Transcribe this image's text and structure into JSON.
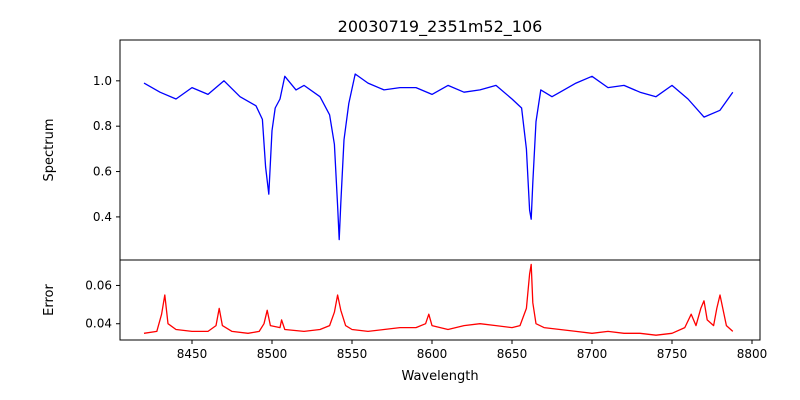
{
  "chart_data": [
    {
      "type": "line",
      "title": "20030719_2351m52_106",
      "xlabel": "",
      "ylabel": "Spectrum",
      "xlim": [
        8405,
        8805
      ],
      "ylim": [
        0.21,
        1.18
      ],
      "xticks": [],
      "yticks": [
        0.4,
        0.6,
        0.8,
        1.0
      ],
      "ytick_labels": [
        "0.4",
        "0.6",
        "0.8",
        "1.0"
      ],
      "grid": false,
      "series": [
        {
          "color": "#0000ff",
          "x": [
            8420,
            8430,
            8440,
            8450,
            8460,
            8470,
            8480,
            8490,
            8494,
            8496,
            8498,
            8500,
            8502,
            8505,
            8508,
            8515,
            8520,
            8530,
            8536,
            8539,
            8541,
            8542,
            8543,
            8545,
            8548,
            8552,
            8560,
            8570,
            8580,
            8590,
            8600,
            8610,
            8620,
            8630,
            8640,
            8650,
            8656,
            8659,
            8661,
            8662,
            8663,
            8665,
            8668,
            8675,
            8680,
            8690,
            8700,
            8710,
            8720,
            8730,
            8740,
            8750,
            8760,
            8770,
            8780,
            8788
          ],
          "y": [
            0.99,
            0.95,
            0.92,
            0.97,
            0.94,
            1.0,
            0.93,
            0.89,
            0.83,
            0.62,
            0.5,
            0.78,
            0.88,
            0.92,
            1.02,
            0.96,
            0.98,
            0.93,
            0.85,
            0.72,
            0.45,
            0.3,
            0.46,
            0.74,
            0.9,
            1.03,
            0.99,
            0.96,
            0.97,
            0.97,
            0.94,
            0.98,
            0.95,
            0.96,
            0.98,
            0.92,
            0.88,
            0.7,
            0.43,
            0.39,
            0.55,
            0.82,
            0.96,
            0.93,
            0.95,
            0.99,
            1.02,
            0.97,
            0.98,
            0.95,
            0.93,
            0.98,
            0.92,
            0.84,
            0.87,
            0.95
          ]
        }
      ]
    },
    {
      "type": "line",
      "title": "",
      "xlabel": "Wavelength",
      "ylabel": "Error",
      "xlim": [
        8405,
        8805
      ],
      "ylim": [
        0.0315,
        0.0733
      ],
      "xticks": [
        8450,
        8500,
        8550,
        8600,
        8650,
        8700,
        8750,
        8800
      ],
      "xtick_labels": [
        "8450",
        "8500",
        "8550",
        "8600",
        "8650",
        "8700",
        "8750",
        "8800"
      ],
      "yticks": [
        0.04,
        0.06
      ],
      "ytick_labels": [
        "0.04",
        "0.06"
      ],
      "grid": false,
      "series": [
        {
          "color": "#ff0000",
          "x": [
            8420,
            8428,
            8431,
            8433,
            8435,
            8440,
            8450,
            8460,
            8465,
            8467,
            8469,
            8475,
            8485,
            8492,
            8495,
            8497,
            8499,
            8505,
            8506,
            8508,
            8520,
            8530,
            8536,
            8539,
            8541,
            8543,
            8546,
            8550,
            8560,
            8570,
            8580,
            8590,
            8596,
            8598,
            8600,
            8610,
            8620,
            8630,
            8640,
            8650,
            8655,
            8659,
            8661,
            8662,
            8663,
            8665,
            8670,
            8680,
            8690,
            8700,
            8710,
            8720,
            8730,
            8740,
            8750,
            8758,
            8762,
            8765,
            8768,
            8770,
            8772,
            8776,
            8778,
            8780,
            8784,
            8788
          ],
          "y": [
            0.035,
            0.036,
            0.045,
            0.055,
            0.04,
            0.037,
            0.036,
            0.036,
            0.039,
            0.048,
            0.039,
            0.036,
            0.035,
            0.036,
            0.04,
            0.047,
            0.039,
            0.038,
            0.042,
            0.037,
            0.036,
            0.037,
            0.039,
            0.046,
            0.055,
            0.047,
            0.039,
            0.037,
            0.036,
            0.037,
            0.038,
            0.038,
            0.04,
            0.045,
            0.039,
            0.037,
            0.039,
            0.04,
            0.039,
            0.038,
            0.039,
            0.048,
            0.066,
            0.071,
            0.051,
            0.04,
            0.038,
            0.037,
            0.036,
            0.035,
            0.036,
            0.035,
            0.035,
            0.034,
            0.035,
            0.038,
            0.045,
            0.039,
            0.048,
            0.052,
            0.042,
            0.039,
            0.048,
            0.055,
            0.039,
            0.036
          ]
        }
      ]
    }
  ]
}
